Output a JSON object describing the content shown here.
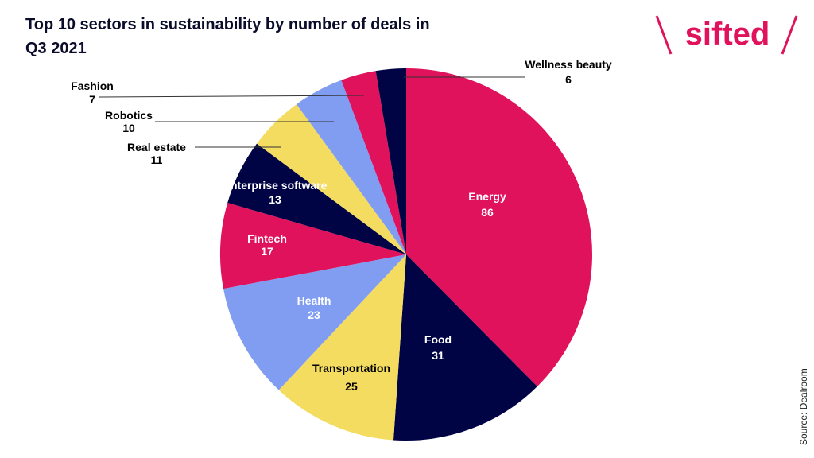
{
  "chart_data": {
    "type": "pie",
    "title": "Top 10 sectors in sustainability by number of deals in Q3 2021",
    "categories": [
      "Energy",
      "Food",
      "Transportation",
      "Health",
      "Fintech",
      "Enterprise software",
      "Real estate",
      "Robotics",
      "Fashion",
      "Wellness beauty"
    ],
    "values": [
      86,
      31,
      25,
      23,
      17,
      13,
      11,
      10,
      7,
      6
    ],
    "colors": [
      "#E0125C",
      "#000445",
      "#F3DC60",
      "#819DF2",
      "#E0125C",
      "#000445",
      "#F3DC60",
      "#819DF2",
      "#E0125C",
      "#000445"
    ],
    "start": "top, clockwise",
    "legend": "none (direct labels)",
    "source": "Source: Dealroom"
  },
  "brand": {
    "logo_text": "sifted",
    "color": "#E0125C"
  }
}
